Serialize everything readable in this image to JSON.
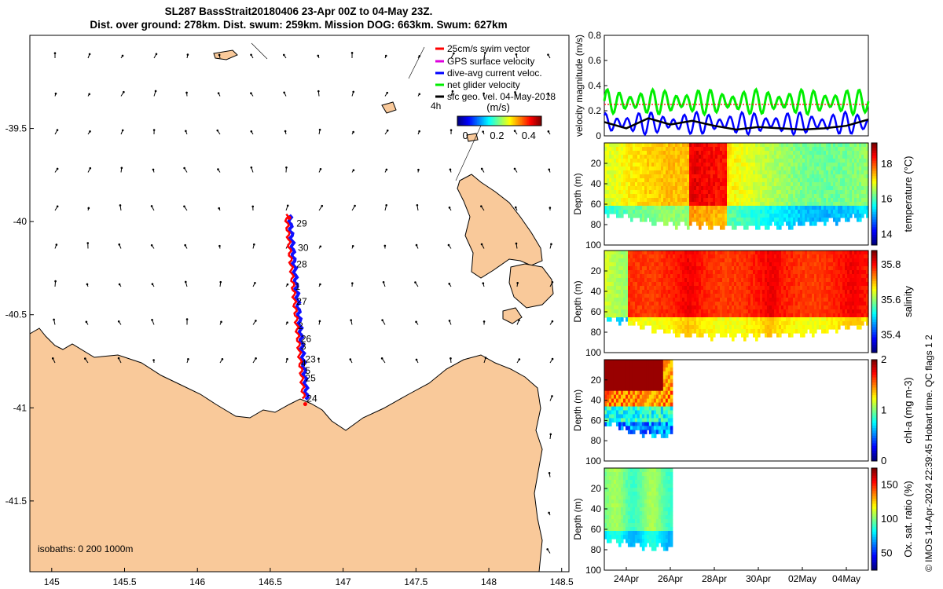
{
  "title": {
    "line1": "SL287 BassStrait20180406 23-Apr 00Z to 04-May 23Z.",
    "line2": "Dist. over ground: 278km. Dist. swum: 259km. Mission DOG: 663km. Swum: 627km"
  },
  "colors": {
    "land": "#f9c99a",
    "gps": "#dd00dd",
    "dive_avg": "#0000ff",
    "swim": "#ff0000",
    "net": "#00ee00",
    "geo": "#000000",
    "track_red": "#ff0000",
    "track_blue": "#1010ff"
  },
  "credit": "© IMOS 14-Apr-2024 22:39:45 Hobart time. QC flags 1  2",
  "chart_data": [
    {
      "type": "scatter",
      "name": "map",
      "xlabel": "",
      "ylabel": "",
      "xlim": [
        144.85,
        148.55
      ],
      "ylim": [
        -41.88,
        -39.0
      ],
      "xticks": [
        "145",
        "145.5",
        "146",
        "146.5",
        "147",
        "147.5",
        "148",
        "148.5"
      ],
      "xtick_values": [
        145,
        145.5,
        146,
        146.5,
        147,
        147.5,
        148,
        148.5
      ],
      "yticks": [
        "-39.5",
        "-40",
        "-40.5",
        "-41",
        "-41.5"
      ],
      "ytick_values": [
        -39.5,
        -40,
        -40.5,
        -41,
        -41.5
      ],
      "legend": {
        "swim": "25cm/s swim vector",
        "gps": "GPS surface velocity",
        "dive_avg": "dive-avg current veloc.",
        "net": "net glider velocity",
        "geo": "sfc geo. vel. 04-May-2018"
      },
      "legend_extra": "4h",
      "isobaths": "isobaths: 0   200  1000m",
      "colorbar": {
        "label": "(m/s)",
        "ticks": [
          "0",
          "0.2",
          "0.4"
        ],
        "tick_values": [
          0,
          0.2,
          0.4
        ],
        "range": [
          -0.05,
          0.48
        ]
      },
      "day_labels": [
        {
          "text": "29",
          "lon": 146.68,
          "lat": -40.01
        },
        {
          "text": "30",
          "lon": 146.69,
          "lat": -40.14
        },
        {
          "text": "28",
          "lon": 146.68,
          "lat": -40.23
        },
        {
          "text": "1",
          "lon": 146.67,
          "lat": -40.35
        },
        {
          "text": "27",
          "lon": 146.68,
          "lat": -40.43
        },
        {
          "text": "2",
          "lon": 146.69,
          "lat": -40.56
        },
        {
          "text": "26",
          "lon": 146.71,
          "lat": -40.63
        },
        {
          "text": "3",
          "lon": 146.71,
          "lat": -40.67
        },
        {
          "text": "23",
          "lon": 146.74,
          "lat": -40.74
        },
        {
          "text": "4",
          "lon": 146.71,
          "lat": -40.76
        },
        {
          "text": "5",
          "lon": 146.74,
          "lat": -40.8
        },
        {
          "text": "25",
          "lon": 146.74,
          "lat": -40.84
        },
        {
          "text": "24",
          "lon": 146.75,
          "lat": -40.95
        }
      ]
    },
    {
      "type": "line",
      "name": "velocity",
      "ylabel": "velocity magnitude (m/s)",
      "ylim": [
        0,
        0.8
      ],
      "yticks": [
        "0",
        "0.2",
        "0.4",
        "0.6",
        "0.8"
      ],
      "ytick_values": [
        0,
        0.2,
        0.4,
        0.6,
        0.8
      ],
      "xlim": [
        23,
        35.0
      ],
      "series": [
        {
          "name": "net glider velocity",
          "mean": 0.27,
          "amp": 0.07,
          "period": 0.52
        },
        {
          "name": "dive-avg current veloc.",
          "mean": 0.1,
          "amp": 0.06,
          "period": 0.52
        },
        {
          "name": "sfc geo. vel.",
          "values": [
            0.11,
            0.06,
            0.14,
            0.09,
            0.12,
            0.08,
            0.05,
            0.07,
            0.06,
            0.05,
            0.06,
            0.08,
            0.13
          ]
        },
        {
          "name": "swim",
          "value": 0.25
        }
      ]
    },
    {
      "type": "heatmap",
      "name": "temperature",
      "ylabel": "Depth (m)",
      "clabel": "temperature (°C)",
      "ylim": [
        100,
        0
      ],
      "yticks": [
        "20",
        "40",
        "60",
        "80",
        "100"
      ],
      "ytick_values": [
        20,
        40,
        60,
        80,
        100
      ],
      "cticks": [
        "14",
        "16",
        "18"
      ],
      "ctick_values": [
        14,
        16,
        18
      ],
      "crange": [
        13.4,
        19.2
      ],
      "xspan": [
        23.0,
        35.0
      ],
      "bottom_depth": [
        67,
        70,
        75,
        78,
        79,
        80,
        80,
        80,
        79,
        78,
        76,
        73,
        70
      ]
    },
    {
      "type": "heatmap",
      "name": "salinity",
      "ylabel": "Depth (m)",
      "clabel": "salinity",
      "ylim": [
        100,
        0
      ],
      "yticks": [
        "20",
        "40",
        "60",
        "80",
        "100"
      ],
      "ytick_values": [
        20,
        40,
        60,
        80,
        100
      ],
      "cticks": [
        "35.4",
        "35.6",
        "35.8"
      ],
      "ctick_values": [
        35.4,
        35.6,
        35.8
      ],
      "crange": [
        35.3,
        35.88
      ],
      "xspan": [
        23.0,
        35.0
      ],
      "bottom_depth": [
        64,
        68,
        74,
        79,
        81,
        82,
        82,
        82,
        81,
        80,
        77,
        74,
        70
      ]
    },
    {
      "type": "heatmap",
      "name": "chlorophyll",
      "ylabel": "Depth (m)",
      "clabel": "chl-a (mg m-3)",
      "ylim": [
        100,
        0
      ],
      "yticks": [
        "20",
        "40",
        "60",
        "80",
        "100"
      ],
      "ytick_values": [
        20,
        40,
        60,
        80,
        100
      ],
      "cticks": [
        "0",
        "1",
        "2"
      ],
      "ctick_values": [
        0,
        1,
        2
      ],
      "crange": [
        0,
        2
      ],
      "xspan": [
        23.0,
        26.1
      ],
      "bottom_depth": [
        62,
        64,
        68,
        70,
        72,
        74,
        74
      ]
    },
    {
      "type": "heatmap",
      "name": "oxygen",
      "ylabel": "Depth (m)",
      "clabel": "Ox. sat. ratio (%)",
      "ylim": [
        100,
        0
      ],
      "yticks": [
        "20",
        "40",
        "60",
        "80",
        "100"
      ],
      "ytick_values": [
        20,
        40,
        60,
        80,
        100
      ],
      "cticks": [
        "50",
        "100",
        "150"
      ],
      "ctick_values": [
        50,
        100,
        150
      ],
      "crange": [
        25,
        175
      ],
      "xspan": [
        23.0,
        26.1
      ],
      "bottom_depth": [
        68,
        70,
        72,
        74,
        75,
        76,
        76
      ],
      "xticks": [
        "24Apr",
        "26Apr",
        "28Apr",
        "30Apr",
        "02May",
        "04May"
      ],
      "xtick_values": [
        24,
        26,
        28,
        30,
        32,
        34
      ]
    }
  ]
}
